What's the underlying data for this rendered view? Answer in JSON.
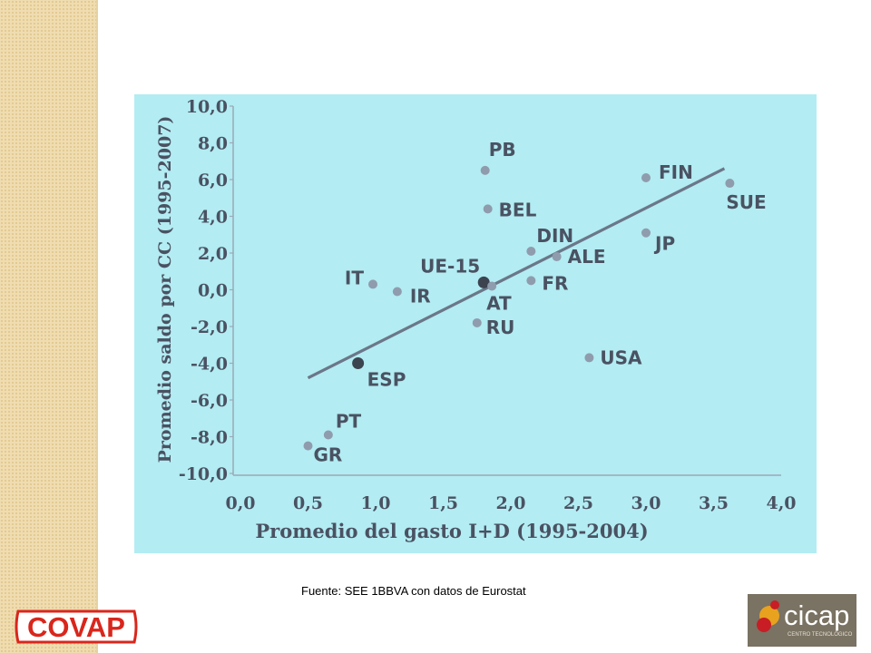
{
  "chart_data": {
    "type": "scatter",
    "title": "",
    "xlabel": "Promedio del gasto I+D (1995-2004)",
    "ylabel": "Promedio saldo por CC (1995-2007)",
    "xlim": [
      0.0,
      4.0
    ],
    "ylim": [
      -10.0,
      10.0
    ],
    "x_ticks": [
      "0,0",
      "0,5",
      "1,0",
      "1,5",
      "2,0",
      "2,5",
      "3,0",
      "3,5",
      "4,0"
    ],
    "y_ticks": [
      "10,0",
      "8,0",
      "6,0",
      "4,0",
      "2,0",
      "0,0",
      "-2,0",
      "-4,0",
      "-6,0",
      "-8,0",
      "-10,0"
    ],
    "grid": false,
    "colors": {
      "background": "#b3ecf3",
      "point": "#8f9cad",
      "highlight": "#3c4450",
      "trend": "#6b7789",
      "text": "#4a5262"
    },
    "points": [
      {
        "label": "PB",
        "x": 1.81,
        "y": 6.5
      },
      {
        "label": "FIN",
        "x": 3.0,
        "y": 6.1
      },
      {
        "label": "SUE",
        "x": 3.62,
        "y": 5.8
      },
      {
        "label": "BEL",
        "x": 1.83,
        "y": 4.4
      },
      {
        "label": "JP",
        "x": 3.0,
        "y": 3.1
      },
      {
        "label": "DIN",
        "x": 2.15,
        "y": 2.1
      },
      {
        "label": "ALE",
        "x": 2.34,
        "y": 1.8
      },
      {
        "label": "UE-15",
        "x": 1.8,
        "y": 0.4,
        "highlight": true
      },
      {
        "label": "AT",
        "x": 1.86,
        "y": 0.2
      },
      {
        "label": "FR",
        "x": 2.15,
        "y": 0.5
      },
      {
        "label": "IT",
        "x": 0.98,
        "y": 0.3
      },
      {
        "label": "IR",
        "x": 1.16,
        "y": -0.1
      },
      {
        "label": "RU",
        "x": 1.75,
        "y": -1.8
      },
      {
        "label": "USA",
        "x": 2.58,
        "y": -3.7
      },
      {
        "label": "ESP",
        "x": 0.87,
        "y": -4.0,
        "highlight": true
      },
      {
        "label": "PT",
        "x": 0.65,
        "y": -7.9
      },
      {
        "label": "GR",
        "x": 0.5,
        "y": -8.5
      }
    ],
    "trendline": {
      "x": [
        0.5,
        3.58
      ],
      "y": [
        -4.8,
        6.6
      ]
    }
  },
  "source": "Fuente: SEE 1BBVA con datos de Eurostat",
  "logos": {
    "covap": "COVAP",
    "cicap": "cicap",
    "cicap_sub": "CENTRO TECNOLÓGICO"
  }
}
